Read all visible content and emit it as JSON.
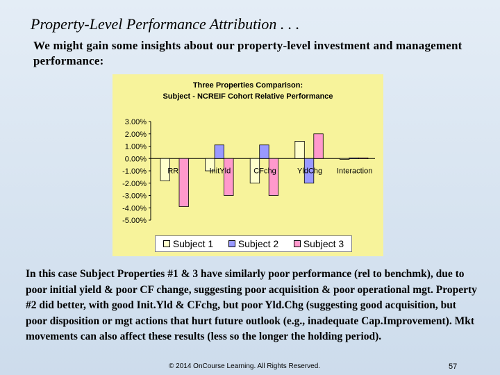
{
  "slide": {
    "title": "Property-Level Performance Attribution . . .",
    "intro": "We might gain some insights about our property-level investment and management performance:",
    "body": "In this case Subject Properties #1 & 3 have similarly poor performance (rel to benchmk), due to poor initial yield & poor CF change, suggesting poor acquisition & poor operational mgt. Property #2 did better, with good Init.Yld & CFchg, but poor Yld.Chg (suggesting good acquisition, but poor disposition or mgt actions that hurt future outlook (e.g., inadequate Cap.Improvement). Mkt movements can also affect these results (less so the longer the holding period).",
    "copyright": "© 2014 OnCourse Learning. All Rights Reserved.",
    "page_number": "57"
  },
  "chart_data": {
    "type": "bar",
    "title": "Three Properties Comparison:",
    "subtitle": "Subject - NCREIF Cohort Relative Performance",
    "categories": [
      "RR",
      "InitYld",
      "CFchg",
      "YldChg",
      "Interaction"
    ],
    "series": [
      {
        "name": "Subject 1",
        "color": "#ffffcc",
        "values": [
          -1.8,
          -1.0,
          -2.0,
          1.4,
          -0.05
        ]
      },
      {
        "name": "Subject 2",
        "color": "#9999ff",
        "values": [
          0.0,
          1.1,
          1.1,
          -2.0,
          0.05
        ]
      },
      {
        "name": "Subject 3",
        "color": "#ff99cc",
        "values": [
          -3.9,
          -3.0,
          -3.0,
          2.0,
          0.05
        ]
      }
    ],
    "ylim": [
      -5,
      3
    ],
    "yticks": [
      "3.00%",
      "2.00%",
      "1.00%",
      "0.00%",
      "-1.00%",
      "-2.00%",
      "-3.00%",
      "-4.00%",
      "-5.00%"
    ],
    "ytick_values": [
      3,
      2,
      1,
      0,
      -1,
      -2,
      -3,
      -4,
      -5
    ],
    "legend_position": "bottom",
    "grid": false
  }
}
